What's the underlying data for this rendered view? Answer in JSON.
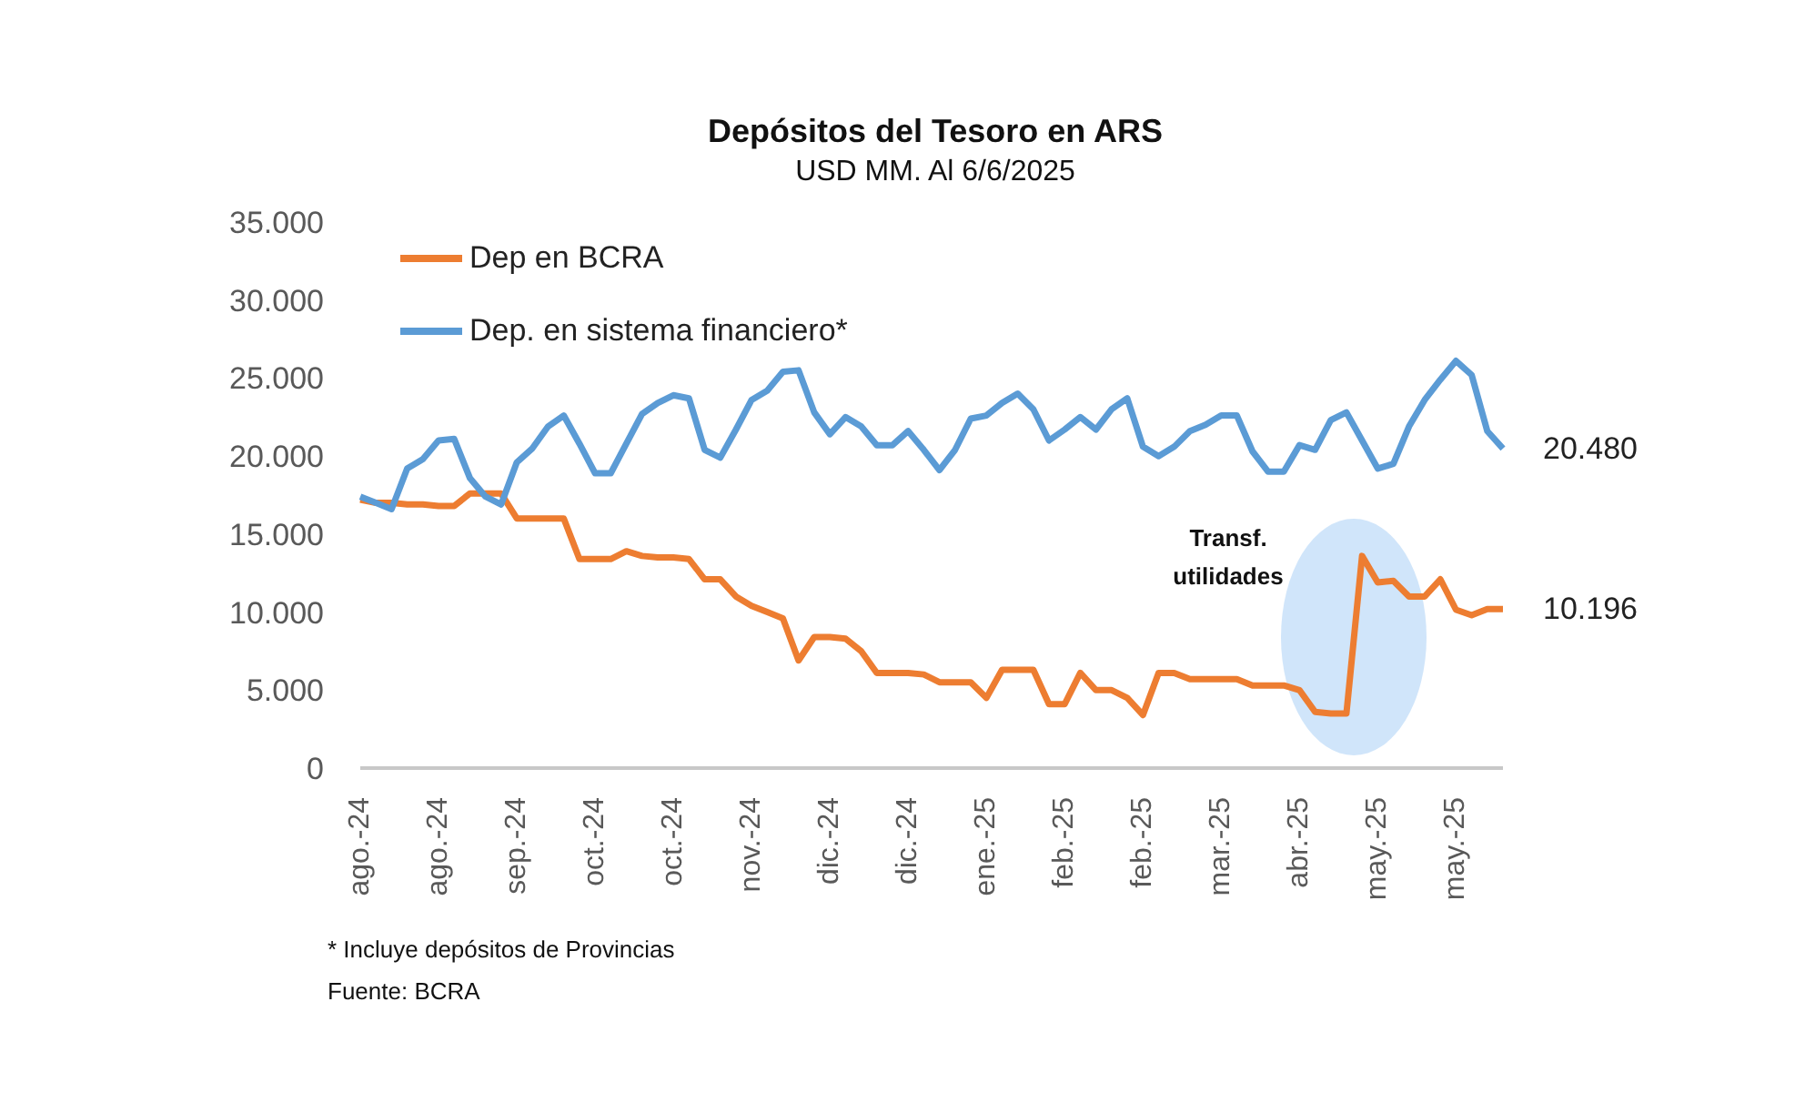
{
  "chart_data": {
    "type": "line",
    "title": "Depósitos del Tesoro en ARS",
    "subtitle": "USD MM. Al 6/6/2025",
    "categories": [
      "ago.-24",
      null,
      null,
      null,
      null,
      "ago.-24",
      null,
      null,
      null,
      null,
      "sep.-24",
      null,
      null,
      null,
      null,
      "oct.-24",
      null,
      null,
      null,
      null,
      "oct.-24",
      null,
      null,
      null,
      null,
      "nov.-24",
      null,
      null,
      null,
      null,
      "dic.-24",
      null,
      null,
      null,
      null,
      "dic.-24",
      null,
      null,
      null,
      null,
      "ene.-25",
      null,
      null,
      null,
      null,
      "feb.-25",
      null,
      null,
      null,
      null,
      "feb.-25",
      null,
      null,
      null,
      null,
      "mar.-25",
      null,
      null,
      null,
      null,
      "abr.-25",
      null,
      null,
      null,
      null,
      "may.-25",
      null,
      null,
      null,
      null,
      "may.-25",
      null,
      null,
      null
    ],
    "series": [
      {
        "name": "Dep en BCRA",
        "color": "#ed7d31",
        "values": [
          17200,
          17000,
          17000,
          16900,
          16900,
          16800,
          16800,
          17600,
          17600,
          17600,
          16000,
          16000,
          16000,
          16000,
          13400,
          13400,
          13400,
          13900,
          13600,
          13500,
          13500,
          13400,
          12100,
          12100,
          11000,
          10400,
          10000,
          9600,
          6900,
          8400,
          8400,
          8300,
          7500,
          6100,
          6100,
          6100,
          6000,
          5500,
          5500,
          5500,
          4500,
          6300,
          6300,
          6300,
          4100,
          4100,
          6100,
          5000,
          5000,
          4500,
          3400,
          6100,
          6100,
          5700,
          5700,
          5700,
          5700,
          5300,
          5300,
          5300,
          5000,
          3600,
          3500,
          3500,
          13600,
          11900,
          12000,
          11000,
          11000,
          12100,
          10150,
          9800,
          10200,
          10196
        ],
        "value_labels": [
          null,
          null,
          null,
          null,
          null,
          null,
          null,
          null,
          null,
          null,
          null,
          null,
          null,
          null,
          null,
          null,
          null,
          null,
          null,
          null,
          null,
          null,
          null,
          null,
          null,
          null,
          null,
          null,
          null,
          null,
          null,
          null,
          null,
          null,
          null,
          null,
          null,
          null,
          null,
          null,
          null,
          null,
          null,
          null,
          null,
          null,
          null,
          null,
          null,
          null,
          null,
          null,
          null,
          null,
          null,
          null,
          null,
          null,
          null,
          null,
          null,
          null,
          null,
          null,
          null,
          null,
          null,
          null,
          null,
          null,
          null,
          null,
          null,
          "10.196"
        ]
      },
      {
        "name": "Dep. en sistema financiero*",
        "color": "#5b9bd5",
        "values": [
          17400,
          17000,
          16600,
          19200,
          19800,
          21000,
          21100,
          18600,
          17400,
          16900,
          19600,
          20500,
          21900,
          22600,
          20800,
          18900,
          18900,
          20800,
          22700,
          23400,
          23900,
          23700,
          20400,
          19900,
          21700,
          23600,
          24200,
          25400,
          25500,
          22800,
          21400,
          22500,
          21900,
          20700,
          20700,
          21600,
          20400,
          19100,
          20400,
          22400,
          22600,
          23400,
          24000,
          23000,
          21000,
          21700,
          22500,
          21700,
          23000,
          23700,
          20600,
          20000,
          20600,
          21600,
          22000,
          22600,
          22600,
          20300,
          19000,
          19000,
          20700,
          20400,
          22300,
          22800,
          21000,
          19200,
          19500,
          21900,
          23600,
          24900,
          26100,
          25200,
          21600,
          20480
        ],
        "value_labels": [
          null,
          null,
          null,
          null,
          null,
          null,
          null,
          null,
          null,
          null,
          null,
          null,
          null,
          null,
          null,
          null,
          null,
          null,
          null,
          null,
          null,
          null,
          null,
          null,
          null,
          null,
          null,
          null,
          null,
          null,
          null,
          null,
          null,
          null,
          null,
          null,
          null,
          null,
          null,
          null,
          null,
          null,
          null,
          null,
          null,
          null,
          null,
          null,
          null,
          null,
          null,
          null,
          null,
          null,
          null,
          null,
          null,
          null,
          null,
          null,
          null,
          null,
          null,
          null,
          null,
          null,
          null,
          null,
          null,
          null,
          null,
          null,
          null,
          "20.480"
        ]
      }
    ],
    "ylim": [
      0,
      35000
    ],
    "yticks": [
      0,
      {
        "value": 5000,
        "label": "5.000"
      },
      {
        "value": 10000,
        "label": "10.000"
      },
      {
        "value": 15000,
        "label": "15.000"
      },
      {
        "value": 20000,
        "label": "20.000"
      },
      {
        "value": 25000,
        "label": "25.000"
      },
      {
        "value": 30000,
        "label": "30.000"
      },
      {
        "value": 35000,
        "label": "35.000"
      }
    ],
    "grid": false,
    "legend": "top left",
    "marker": "none",
    "line_style": "solid",
    "annotations": [
      "Transf. utilidades",
      "* Incluye depósitos de Provincias",
      "Fuente: BCRA"
    ]
  }
}
